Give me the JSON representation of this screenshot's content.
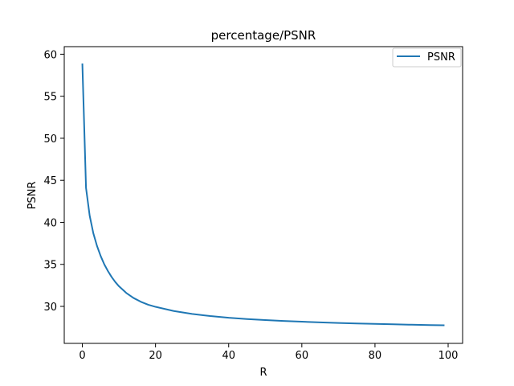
{
  "chart_data": {
    "type": "line",
    "title": "percentage/PSNR",
    "xlabel": "R",
    "ylabel": "PSNR",
    "xlim": [
      -4.95,
      103.95
    ],
    "ylim": [
      25.6,
      60.9
    ],
    "xticks": [
      0,
      20,
      40,
      60,
      80,
      100
    ],
    "yticks": [
      30,
      35,
      40,
      45,
      50,
      55,
      60
    ],
    "grid": false,
    "legend_position": "top-right",
    "series": [
      {
        "name": "PSNR",
        "color": "#1f77b4",
        "x": [
          0,
          1,
          2,
          3,
          4,
          5,
          6,
          7,
          8,
          9,
          10,
          12,
          14,
          16,
          18,
          20,
          25,
          30,
          35,
          40,
          45,
          50,
          55,
          60,
          65,
          70,
          75,
          80,
          85,
          90,
          95,
          99
        ],
        "y": [
          58.9,
          44.1,
          40.8,
          38.7,
          37.2,
          36.0,
          35.0,
          34.2,
          33.5,
          32.9,
          32.4,
          31.6,
          31.0,
          30.55,
          30.2,
          29.95,
          29.45,
          29.1,
          28.85,
          28.65,
          28.5,
          28.38,
          28.27,
          28.18,
          28.1,
          28.03,
          27.97,
          27.92,
          27.87,
          27.82,
          27.78,
          27.75
        ]
      }
    ]
  }
}
